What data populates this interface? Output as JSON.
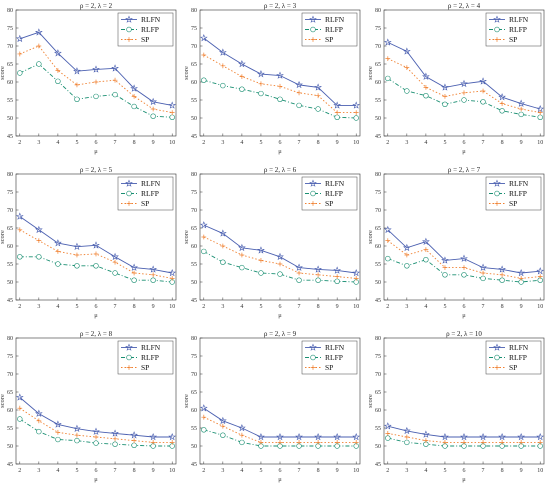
{
  "colors": {
    "RLFN": "#4a5fb0",
    "RLFP": "#1a8f72",
    "SP": "#f08030",
    "axis": "#333333",
    "grid": "#e8e8e8"
  },
  "legend_labels": [
    "RLFN",
    "RLFP",
    "SP"
  ],
  "chart_data": [
    {
      "type": "line",
      "title": "ρ = 2,  λ = 2",
      "xlabel": "μ",
      "ylabel": "score",
      "x": [
        2,
        3,
        4,
        5,
        6,
        7,
        8,
        9,
        10
      ],
      "xlim": [
        1.8,
        10.2
      ],
      "ylim": [
        45,
        80
      ],
      "yticks": [
        45,
        50,
        55,
        60,
        65,
        70,
        75,
        80
      ],
      "legend": "top-right",
      "series": [
        {
          "name": "RLFN",
          "values": [
            72,
            73.8,
            68,
            63,
            63.5,
            63.8,
            58.2,
            54.5,
            53.5
          ]
        },
        {
          "name": "RLFP",
          "values": [
            62.5,
            65,
            60.2,
            55.2,
            56,
            56.5,
            53.2,
            50.5,
            50.2
          ]
        },
        {
          "name": "SP",
          "values": [
            67.8,
            70,
            63.2,
            59.2,
            60,
            60.5,
            56,
            52.5,
            51.5
          ]
        }
      ]
    },
    {
      "type": "line",
      "title": "ρ = 2,  λ = 3",
      "xlabel": "μ",
      "ylabel": "score",
      "x": [
        2,
        3,
        4,
        5,
        6,
        7,
        8,
        9,
        10
      ],
      "xlim": [
        1.8,
        10.2
      ],
      "ylim": [
        45,
        80
      ],
      "yticks": [
        45,
        50,
        55,
        60,
        65,
        70,
        75,
        80
      ],
      "legend": "top-right",
      "series": [
        {
          "name": "RLFN",
          "values": [
            72.2,
            68.2,
            65,
            62.2,
            61.8,
            59.2,
            58.5,
            53.5,
            53.5
          ]
        },
        {
          "name": "RLFP",
          "values": [
            60.5,
            59,
            58,
            56.8,
            55.2,
            53.5,
            52.5,
            50.2,
            50
          ]
        },
        {
          "name": "SP",
          "values": [
            67.5,
            64.5,
            61.5,
            59.5,
            58.8,
            57,
            56.2,
            51.5,
            51.5
          ]
        }
      ]
    },
    {
      "type": "line",
      "title": "ρ = 2,  λ = 4",
      "xlabel": "μ",
      "ylabel": "score",
      "x": [
        2,
        3,
        4,
        5,
        6,
        7,
        8,
        9,
        10
      ],
      "xlim": [
        1.8,
        10.2
      ],
      "ylim": [
        45,
        80
      ],
      "yticks": [
        45,
        50,
        55,
        60,
        65,
        70,
        75,
        80
      ],
      "legend": "top-right",
      "series": [
        {
          "name": "RLFN",
          "values": [
            71,
            68.5,
            61.5,
            58.5,
            59.5,
            60.2,
            55.8,
            54,
            52.5
          ]
        },
        {
          "name": "RLFP",
          "values": [
            61,
            57.5,
            56.2,
            53.8,
            55,
            54.5,
            52,
            51,
            50.2
          ]
        },
        {
          "name": "SP",
          "values": [
            66.5,
            64,
            58.5,
            56,
            57,
            57.5,
            54,
            52.5,
            51.5
          ]
        }
      ]
    },
    {
      "type": "line",
      "title": "ρ = 2,  λ = 5",
      "xlabel": "μ",
      "ylabel": "score",
      "x": [
        2,
        3,
        4,
        5,
        6,
        7,
        8,
        9,
        10
      ],
      "xlim": [
        1.8,
        10.2
      ],
      "ylim": [
        45,
        80
      ],
      "yticks": [
        45,
        50,
        55,
        60,
        65,
        70,
        75,
        80
      ],
      "legend": "top-right",
      "series": [
        {
          "name": "RLFN",
          "values": [
            68.2,
            64.5,
            60.8,
            59.8,
            60.2,
            57,
            54,
            53.5,
            52.5
          ]
        },
        {
          "name": "RLFP",
          "values": [
            57,
            57,
            55,
            54.5,
            54.5,
            52.5,
            50.5,
            50.5,
            50
          ]
        },
        {
          "name": "SP",
          "values": [
            64.5,
            61.5,
            58.5,
            57.5,
            57.8,
            55.5,
            52.5,
            52,
            51
          ]
        }
      ]
    },
    {
      "type": "line",
      "title": "ρ = 2,  λ = 6",
      "xlabel": "μ",
      "ylabel": "score",
      "x": [
        2,
        3,
        4,
        5,
        6,
        7,
        8,
        9,
        10
      ],
      "xlim": [
        1.8,
        10.2
      ],
      "ylim": [
        45,
        80
      ],
      "yticks": [
        45,
        50,
        55,
        60,
        65,
        70,
        75,
        80
      ],
      "legend": "top-right",
      "series": [
        {
          "name": "RLFN",
          "values": [
            65.8,
            63.5,
            59.5,
            58.8,
            57,
            54,
            53.5,
            53.2,
            52.5
          ]
        },
        {
          "name": "RLFP",
          "values": [
            58.5,
            55.5,
            54,
            52.5,
            52.2,
            50.5,
            50.5,
            50.2,
            50
          ]
        },
        {
          "name": "SP",
          "values": [
            62.5,
            60,
            57.5,
            56,
            55,
            52.5,
            52,
            51.5,
            51
          ]
        }
      ]
    },
    {
      "type": "line",
      "title": "ρ = 2,  λ = 7",
      "xlabel": "μ",
      "ylabel": "score",
      "x": [
        2,
        3,
        4,
        5,
        6,
        7,
        8,
        9,
        10
      ],
      "xlim": [
        1.8,
        10.2
      ],
      "ylim": [
        45,
        80
      ],
      "yticks": [
        45,
        50,
        55,
        60,
        65,
        70,
        75,
        80
      ],
      "legend": "top-right",
      "series": [
        {
          "name": "RLFN",
          "values": [
            64.5,
            59.5,
            61.2,
            56,
            56.5,
            54,
            53.5,
            52.5,
            53
          ]
        },
        {
          "name": "RLFP",
          "values": [
            56.5,
            54.5,
            56.2,
            52,
            52,
            51,
            50.5,
            50,
            50.5
          ]
        },
        {
          "name": "SP",
          "values": [
            61.5,
            57.5,
            59,
            54,
            54,
            52.5,
            52,
            51,
            51.5
          ]
        }
      ]
    },
    {
      "type": "line",
      "title": "ρ = 2,  λ = 8",
      "xlabel": "μ",
      "ylabel": "score",
      "x": [
        2,
        3,
        4,
        5,
        6,
        7,
        8,
        9,
        10
      ],
      "xlim": [
        1.8,
        10.2
      ],
      "ylim": [
        45,
        80
      ],
      "yticks": [
        45,
        50,
        55,
        60,
        65,
        70,
        75,
        80
      ],
      "legend": "top-right",
      "series": [
        {
          "name": "RLFN",
          "values": [
            63.5,
            59,
            56,
            54.8,
            54,
            53.5,
            53,
            52.5,
            52.5
          ]
        },
        {
          "name": "RLFP",
          "values": [
            57.5,
            54,
            51.8,
            51.5,
            50.8,
            50.5,
            50.2,
            50,
            50
          ]
        },
        {
          "name": "SP",
          "values": [
            60.5,
            57,
            53.8,
            53,
            52.5,
            52,
            51.5,
            51,
            51
          ]
        }
      ]
    },
    {
      "type": "line",
      "title": "ρ = 2,  λ = 9",
      "xlabel": "μ",
      "ylabel": "score",
      "x": [
        2,
        3,
        4,
        5,
        6,
        7,
        8,
        9,
        10
      ],
      "xlim": [
        1.8,
        10.2
      ],
      "ylim": [
        45,
        80
      ],
      "yticks": [
        45,
        50,
        55,
        60,
        65,
        70,
        75,
        80
      ],
      "legend": "top-right",
      "series": [
        {
          "name": "RLFN",
          "values": [
            60.5,
            57,
            55,
            52.5,
            52.5,
            52.5,
            52.5,
            52.5,
            52.5
          ]
        },
        {
          "name": "RLFP",
          "values": [
            54.5,
            53,
            51,
            50,
            50,
            50,
            50,
            50,
            50
          ]
        },
        {
          "name": "SP",
          "values": [
            58,
            55.5,
            53,
            51,
            51,
            51,
            51,
            51,
            51
          ]
        }
      ]
    },
    {
      "type": "line",
      "title": "ρ = 2,  λ = 10",
      "xlabel": "μ",
      "ylabel": "score",
      "x": [
        2,
        3,
        4,
        5,
        6,
        7,
        8,
        9,
        10
      ],
      "xlim": [
        1.8,
        10.2
      ],
      "ylim": [
        45,
        80
      ],
      "yticks": [
        45,
        50,
        55,
        60,
        65,
        70,
        75,
        80
      ],
      "legend": "top-right",
      "series": [
        {
          "name": "RLFN",
          "values": [
            55.5,
            54.2,
            53.2,
            52.5,
            52.5,
            52.5,
            52.5,
            52.5,
            52.5
          ]
        },
        {
          "name": "RLFP",
          "values": [
            52.2,
            51,
            50.5,
            50,
            50,
            50,
            50,
            50,
            50
          ]
        },
        {
          "name": "SP",
          "values": [
            53.5,
            52.5,
            51.5,
            51,
            51,
            51,
            51,
            51,
            51
          ]
        }
      ]
    }
  ]
}
